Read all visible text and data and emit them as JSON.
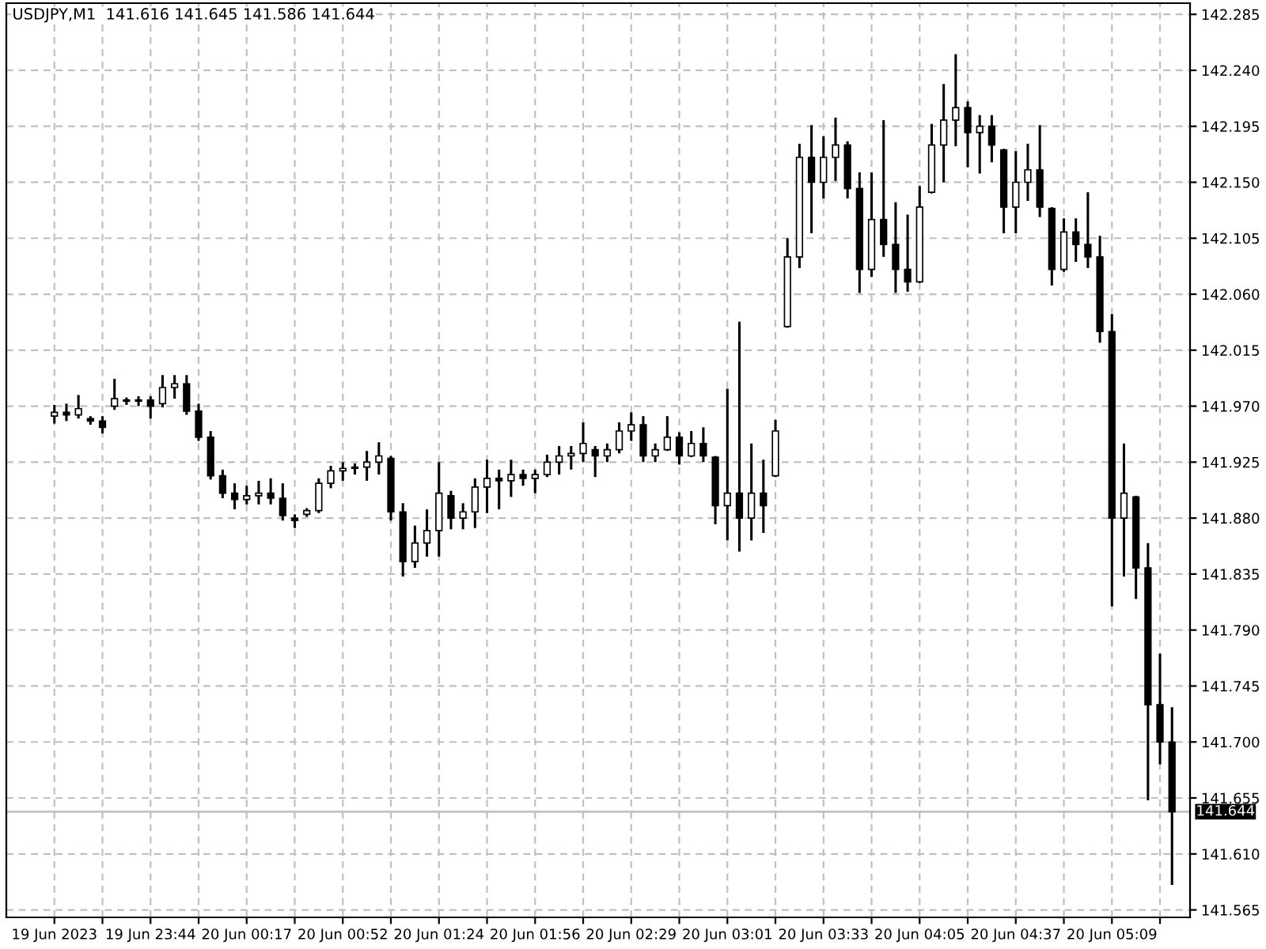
{
  "chart_data": {
    "type": "candlestick",
    "title": "USDJPY,M1  141.616 141.645 141.586 141.644",
    "categories": [
      "19 Jun 2023",
      null,
      null,
      null,
      null,
      null,
      null,
      null,
      "19 Jun 23:44",
      null,
      null,
      null,
      null,
      null,
      null,
      null,
      "20 Jun 00:17",
      null,
      null,
      null,
      null,
      null,
      null,
      null,
      "20 Jun 00:52",
      null,
      null,
      null,
      null,
      null,
      null,
      null,
      "20 Jun 01:24",
      null,
      null,
      null,
      null,
      null,
      null,
      null,
      "20 Jun 01:56",
      null,
      null,
      null,
      null,
      null,
      null,
      null,
      "20 Jun 02:29",
      null,
      null,
      null,
      null,
      null,
      null,
      null,
      "20 Jun 03:01",
      null,
      null,
      null,
      null,
      null,
      null,
      null,
      "20 Jun 03:33",
      null,
      null,
      null,
      null,
      null,
      null,
      null,
      "20 Jun 04:05",
      null,
      null,
      null,
      null,
      null,
      null,
      null,
      "20 Jun 04:37",
      null,
      null,
      null,
      null,
      null,
      null,
      null,
      "20 Jun 05:09",
      null,
      null,
      null,
      null,
      null
    ],
    "ohlc": [
      [
        141.962,
        141.97,
        141.957,
        141.965
      ],
      [
        141.965,
        141.971,
        141.959,
        141.963
      ],
      [
        141.963,
        141.978,
        141.961,
        141.968
      ],
      [
        141.96,
        141.961,
        141.956,
        141.958
      ],
      [
        141.958,
        141.961,
        141.949,
        141.953
      ],
      [
        141.97,
        141.991,
        141.968,
        141.976
      ],
      [
        141.975,
        141.976,
        141.972,
        141.974
      ],
      [
        141.974,
        141.977,
        141.971,
        141.975
      ],
      [
        141.975,
        141.977,
        141.961,
        141.97
      ],
      [
        141.972,
        141.994,
        141.97,
        141.985
      ],
      [
        141.985,
        141.994,
        141.977,
        141.988
      ],
      [
        141.988,
        141.994,
        141.964,
        141.966
      ],
      [
        141.966,
        141.971,
        141.943,
        141.945
      ],
      [
        141.945,
        141.949,
        141.912,
        141.914
      ],
      [
        141.914,
        141.918,
        141.897,
        141.9
      ],
      [
        141.9,
        141.907,
        141.888,
        141.895
      ],
      [
        141.895,
        141.905,
        141.892,
        141.898
      ],
      [
        141.898,
        141.909,
        141.892,
        141.9
      ],
      [
        141.9,
        141.911,
        141.892,
        141.896
      ],
      [
        141.896,
        141.907,
        141.879,
        141.882
      ],
      [
        141.88,
        141.882,
        141.873,
        141.878
      ],
      [
        141.883,
        141.887,
        141.882,
        141.886
      ],
      [
        141.886,
        141.911,
        141.885,
        141.908
      ],
      [
        141.908,
        141.921,
        141.905,
        141.918
      ],
      [
        141.918,
        141.924,
        141.911,
        141.92
      ],
      [
        141.92,
        141.923,
        141.916,
        141.921
      ],
      [
        141.921,
        141.933,
        141.911,
        141.925
      ],
      [
        141.925,
        141.94,
        141.916,
        141.93
      ],
      [
        141.928,
        141.929,
        141.879,
        141.885
      ],
      [
        141.885,
        141.891,
        141.834,
        141.845
      ],
      [
        141.845,
        141.873,
        141.841,
        141.86
      ],
      [
        141.86,
        141.886,
        141.85,
        141.87
      ],
      [
        141.87,
        141.924,
        141.85,
        141.9
      ],
      [
        141.898,
        141.901,
        141.872,
        141.88
      ],
      [
        141.88,
        141.891,
        141.872,
        141.885
      ],
      [
        141.885,
        141.911,
        141.873,
        141.905
      ],
      [
        141.905,
        141.926,
        141.885,
        141.912
      ],
      [
        141.912,
        141.918,
        141.888,
        141.91
      ],
      [
        141.91,
        141.926,
        141.898,
        141.915
      ],
      [
        141.915,
        141.918,
        141.907,
        141.912
      ],
      [
        141.912,
        141.918,
        141.901,
        141.915
      ],
      [
        141.915,
        141.93,
        141.914,
        141.925
      ],
      [
        141.925,
        141.937,
        141.916,
        141.93
      ],
      [
        141.93,
        141.937,
        141.92,
        141.932
      ],
      [
        141.932,
        141.956,
        141.926,
        141.94
      ],
      [
        141.935,
        141.937,
        141.914,
        141.93
      ],
      [
        141.93,
        141.939,
        141.926,
        141.935
      ],
      [
        141.935,
        141.956,
        141.933,
        141.95
      ],
      [
        141.95,
        141.964,
        141.943,
        141.955
      ],
      [
        141.955,
        141.961,
        141.926,
        141.93
      ],
      [
        141.93,
        141.939,
        141.926,
        141.935
      ],
      [
        141.935,
        141.961,
        141.935,
        141.945
      ],
      [
        141.945,
        141.948,
        141.924,
        141.93
      ],
      [
        141.93,
        141.949,
        141.93,
        141.94
      ],
      [
        141.94,
        141.952,
        141.926,
        141.93
      ],
      [
        141.929,
        141.929,
        141.876,
        141.89
      ],
      [
        141.89,
        141.983,
        141.863,
        141.9
      ],
      [
        141.9,
        142.037,
        141.854,
        141.88
      ],
      [
        141.88,
        141.939,
        141.863,
        141.9
      ],
      [
        141.9,
        141.926,
        141.869,
        141.89
      ],
      [
        141.914,
        141.958,
        141.914,
        141.95
      ],
      [
        142.034,
        142.104,
        142.034,
        142.09
      ],
      [
        142.09,
        142.18,
        142.082,
        142.17
      ],
      [
        142.17,
        142.195,
        142.11,
        142.15
      ],
      [
        142.15,
        142.186,
        142.138,
        142.17
      ],
      [
        142.17,
        142.201,
        142.152,
        142.18
      ],
      [
        142.18,
        142.182,
        142.138,
        142.145
      ],
      [
        142.145,
        142.157,
        142.062,
        142.08
      ],
      [
        142.08,
        142.157,
        142.075,
        142.12
      ],
      [
        142.12,
        142.199,
        142.091,
        142.1
      ],
      [
        142.1,
        142.133,
        142.062,
        142.08
      ],
      [
        142.08,
        142.123,
        142.063,
        142.07
      ],
      [
        142.07,
        142.146,
        142.07,
        142.13
      ],
      [
        142.142,
        142.196,
        142.142,
        142.18
      ],
      [
        142.18,
        142.228,
        142.151,
        142.2
      ],
      [
        142.2,
        142.252,
        142.18,
        142.21
      ],
      [
        142.21,
        142.214,
        142.163,
        142.19
      ],
      [
        142.19,
        142.203,
        142.158,
        142.195
      ],
      [
        142.195,
        142.203,
        142.167,
        142.18
      ],
      [
        142.176,
        142.176,
        142.11,
        142.13
      ],
      [
        142.13,
        142.174,
        142.11,
        142.15
      ],
      [
        142.15,
        142.18,
        142.136,
        142.16
      ],
      [
        142.16,
        142.195,
        142.123,
        142.13
      ],
      [
        142.129,
        142.129,
        142.068,
        142.08
      ],
      [
        142.08,
        142.12,
        142.079,
        142.11
      ],
      [
        142.11,
        142.12,
        142.087,
        142.1
      ],
      [
        142.1,
        142.141,
        142.082,
        142.09
      ],
      [
        142.09,
        142.106,
        142.022,
        142.03
      ],
      [
        142.03,
        142.043,
        141.81,
        141.88
      ],
      [
        141.88,
        141.939,
        141.834,
        141.9
      ],
      [
        141.897,
        141.897,
        141.816,
        141.84
      ],
      [
        141.84,
        141.859,
        141.654,
        141.73
      ],
      [
        141.73,
        141.77,
        141.683,
        141.7
      ],
      [
        141.7,
        141.727,
        141.586,
        141.644
      ]
    ],
    "color": "#000000",
    "ylim": [
      141.559,
      142.294
    ],
    "yticks": [
      141.565,
      {
        "value": 141.61,
        "label": "141.610"
      },
      141.655,
      {
        "value": 141.7,
        "label": "141.700"
      },
      141.745,
      {
        "value": 141.79,
        "label": "141.790"
      },
      141.835,
      {
        "value": 141.88,
        "label": "141.880"
      },
      141.925,
      {
        "value": 141.97,
        "label": "141.970"
      },
      142.015,
      {
        "value": 142.06,
        "label": "142.060"
      },
      142.105,
      {
        "value": 142.15,
        "label": "142.150"
      },
      142.195,
      {
        "value": 142.24,
        "label": "142.240"
      },
      142.285
    ],
    "ref_lines": [
      {
        "axis": "y",
        "value": 141.644,
        "label": "141.644",
        "color": "#c0c0c0"
      }
    ],
    "grid": true
  }
}
